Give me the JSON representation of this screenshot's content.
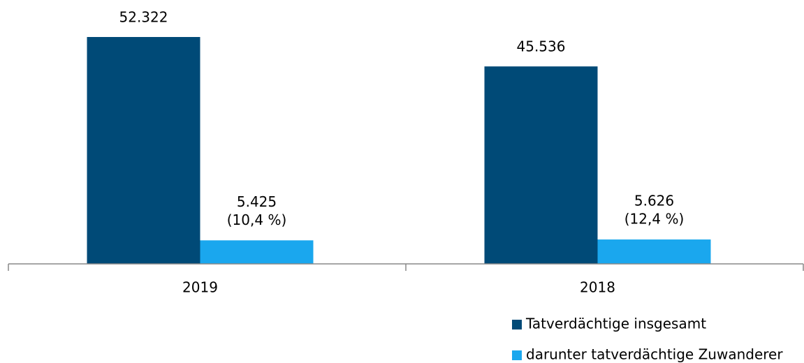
{
  "chart_data": {
    "type": "bar",
    "categories": [
      "2019",
      "2018"
    ],
    "series": [
      {
        "name": "Tatverdächtige insgesamt",
        "color": "#004a77",
        "values": [
          52322,
          45536
        ],
        "value_labels": [
          "52.322",
          "45.536"
        ]
      },
      {
        "name": "darunter tatverdächtige Zuwanderer",
        "color": "#1aa7ee",
        "values": [
          5425,
          5626
        ],
        "value_labels": [
          [
            "5.425",
            "(10,4 %)"
          ],
          [
            "5.626",
            "(12,4 %)"
          ]
        ]
      }
    ],
    "legend": "bottom-right"
  }
}
